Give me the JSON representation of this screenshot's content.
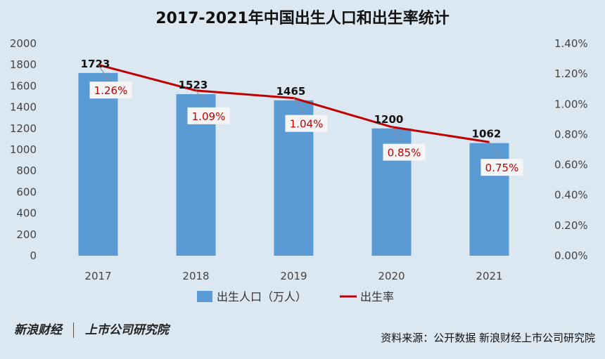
{
  "chart_data": {
    "type": "bar",
    "title": "2017-2021年中国出生人口和出生率统计",
    "categories": [
      "2017",
      "2018",
      "2019",
      "2020",
      "2021"
    ],
    "series": [
      {
        "name": "出生人口（万人）",
        "type": "bar",
        "axis": "left",
        "values": [
          1723,
          1523,
          1465,
          1200,
          1062
        ],
        "color": "#5b9bd5"
      },
      {
        "name": "出生率",
        "type": "line",
        "axis": "right",
        "values": [
          1.26,
          1.09,
          1.04,
          0.85,
          0.75
        ],
        "labels": [
          "1.26%",
          "1.09%",
          "1.04%",
          "0.85%",
          "0.75%"
        ],
        "color": "#c00000"
      }
    ],
    "ylim": [
      0,
      2000
    ],
    "yticks": [
      "0",
      "200",
      "400",
      "600",
      "800",
      "1000",
      "1200",
      "1400",
      "1600",
      "1800",
      "2000"
    ],
    "y2lim": [
      0,
      1.4
    ],
    "y2ticks": [
      "0.00%",
      "0.20%",
      "0.40%",
      "0.60%",
      "0.80%",
      "1.00%",
      "1.20%",
      "1.40%"
    ],
    "legend": "bottom",
    "grid": false
  },
  "footer": {
    "logo_sina": "新浪财经",
    "logo_institute": "上市公司研究院",
    "source": "资料来源：公开数据 新浪财经上市公司研究院"
  }
}
